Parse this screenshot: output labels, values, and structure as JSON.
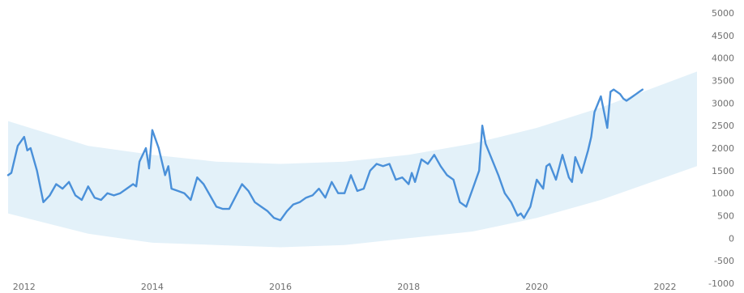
{
  "chart_data": {
    "type": "line",
    "title": "",
    "xlabel": "",
    "ylabel": "",
    "x_ticks": [
      "2012",
      "2014",
      "2016",
      "2018",
      "2020",
      "2022"
    ],
    "y_ticks": [
      "5000",
      "4500",
      "4000",
      "3500",
      "3000",
      "2500",
      "2000",
      "1500",
      "1000",
      "500",
      "0",
      "-500",
      "-1000"
    ],
    "xlim": [
      2011.75,
      2022.5
    ],
    "ylim": [
      -1000,
      5000
    ],
    "grid": false,
    "legend": "none",
    "colors": {
      "line": "#4a90d9",
      "band": "#dcedf8"
    },
    "band": {
      "x": [
        2011.75,
        2013,
        2014,
        2015,
        2016,
        2017,
        2018,
        2019,
        2020,
        2021,
        2022.5
      ],
      "upper": [
        2600,
        2050,
        1850,
        1700,
        1650,
        1700,
        1850,
        2100,
        2450,
        2900,
        3700
      ],
      "lower": [
        550,
        100,
        -100,
        -150,
        -200,
        -150,
        0,
        150,
        450,
        850,
        1600
      ]
    },
    "series": [
      {
        "x": [
          2011.75,
          2011.8,
          2011.9,
          2012.0,
          2012.05,
          2012.1,
          2012.2,
          2012.3,
          2012.4,
          2012.5,
          2012.6,
          2012.7,
          2012.8,
          2012.9,
          2013.0,
          2013.1,
          2013.2,
          2013.3,
          2013.4,
          2013.5,
          2013.6,
          2013.7,
          2013.75,
          2013.8,
          2013.9,
          2013.95,
          2014.0,
          2014.1,
          2014.2,
          2014.25,
          2014.3,
          2014.4,
          2014.5,
          2014.6,
          2014.7,
          2014.8,
          2014.9,
          2015.0,
          2015.1,
          2015.2,
          2015.4,
          2015.5,
          2015.6,
          2015.7,
          2015.8,
          2015.9,
          2016.0,
          2016.1,
          2016.2,
          2016.3,
          2016.4,
          2016.5,
          2016.6,
          2016.7,
          2016.8,
          2016.9,
          2017.0,
          2017.1,
          2017.2,
          2017.3,
          2017.4,
          2017.5,
          2017.6,
          2017.7,
          2017.8,
          2017.9,
          2018.0,
          2018.05,
          2018.1,
          2018.2,
          2018.3,
          2018.4,
          2018.5,
          2018.6,
          2018.7,
          2018.8,
          2018.9,
          2019.0,
          2019.1,
          2019.15,
          2019.2,
          2019.3,
          2019.4,
          2019.5,
          2019.6,
          2019.7,
          2019.75,
          2019.8,
          2019.9,
          2020.0,
          2020.1,
          2020.15,
          2020.2,
          2020.3,
          2020.4,
          2020.5,
          2020.55,
          2020.6,
          2020.7,
          2020.8,
          2020.85,
          2020.9,
          2021.0,
          2021.1,
          2021.15,
          2021.2,
          2021.3,
          2021.35,
          2021.4,
          2021.45,
          2021.5,
          2021.55,
          2021.6,
          2021.65
        ],
        "values": [
          1400,
          1450,
          2050,
          2250,
          1950,
          2000,
          1500,
          800,
          950,
          1200,
          1100,
          1250,
          950,
          850,
          1150,
          900,
          850,
          1000,
          950,
          1000,
          1100,
          1200,
          1150,
          1700,
          2000,
          1550,
          2400,
          2000,
          1400,
          1600,
          1100,
          1050,
          1000,
          850,
          1350,
          1200,
          950,
          700,
          650,
          650,
          1200,
          1050,
          800,
          700,
          600,
          450,
          400,
          600,
          750,
          800,
          900,
          950,
          1100,
          900,
          1250,
          1000,
          1000,
          1400,
          1050,
          1100,
          1500,
          1650,
          1600,
          1650,
          1300,
          1350,
          1200,
          1450,
          1250,
          1750,
          1650,
          1850,
          1600,
          1400,
          1300,
          800,
          700,
          1100,
          1500,
          2500,
          2100,
          1750,
          1400,
          1000,
          800,
          500,
          550,
          450,
          700,
          1300,
          1100,
          1600,
          1650,
          1300,
          1850,
          1350,
          1250,
          1800,
          1450,
          1950,
          2250,
          2800,
          3150,
          2450,
          3250,
          3300,
          3200,
          3100,
          3050,
          3100,
          3150,
          3200,
          3250,
          3300
        ]
      }
    ]
  }
}
